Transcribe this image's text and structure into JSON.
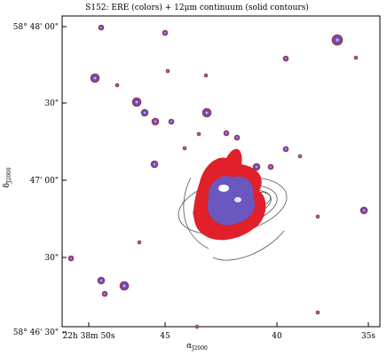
{
  "title": "S152: ERE (colors) + 12μm continuum (solid contours)",
  "xlabel": {
    "symbol": "α",
    "sub": "J2000"
  },
  "ylabel": {
    "symbol": "δ",
    "sub": "J2000"
  },
  "xticks": [
    "22h 38m 50s",
    "45",
    "40",
    "35s"
  ],
  "yticks": [
    "58° 48' 00\"",
    "30\"",
    "47' 00\"",
    "30\"",
    "58° 46' 30\""
  ]
}
